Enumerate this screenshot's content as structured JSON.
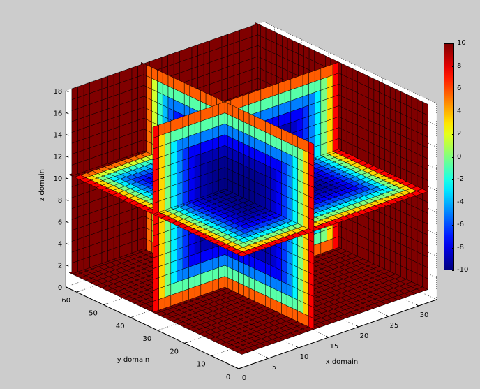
{
  "chart_data": {
    "type": "slice",
    "title": "",
    "xlabel": "x domain",
    "ylabel": "y domain",
    "zlabel": "z domain",
    "xlim": [
      0,
      33
    ],
    "ylim": [
      0,
      64
    ],
    "zlim": [
      0,
      18
    ],
    "xticks": [
      "0",
      "5",
      "10",
      "15",
      "20",
      "25",
      "30"
    ],
    "yticks": [
      "0",
      "10",
      "20",
      "30",
      "40",
      "50",
      "60"
    ],
    "zticks": [
      "0",
      "2",
      "4",
      "6",
      "8",
      "10",
      "12",
      "14",
      "16",
      "18"
    ],
    "data_extent": {
      "x": [
        1,
        32
      ],
      "y": [
        1,
        64
      ],
      "z": [
        1,
        18
      ]
    },
    "slices": {
      "x": 13,
      "y": 34,
      "z": 10
    },
    "walls": [
      "x=32",
      "y=64",
      "z=1"
    ],
    "colormap": "jet",
    "clim": [
      -10,
      10
    ],
    "colorbar": {
      "ticks": [
        "10",
        "8",
        "6",
        "4",
        "2",
        "0",
        "-2",
        "-4",
        "-6",
        "-8",
        "-10"
      ],
      "placement": "right"
    },
    "grid": true
  },
  "colors": {
    "background": "#cccccc",
    "pane": "#ffffff",
    "edge": "#000000"
  }
}
